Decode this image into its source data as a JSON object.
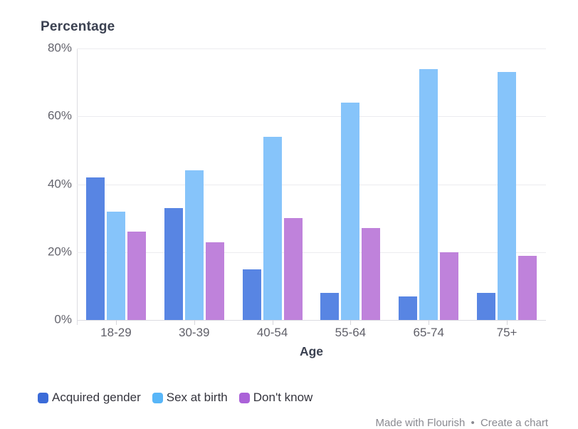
{
  "chart_data": {
    "type": "bar",
    "title": "Percentage",
    "xlabel": "Age",
    "categories": [
      "18-29",
      "30-39",
      "40-54",
      "55-64",
      "65-74",
      "75+"
    ],
    "series": [
      {
        "name": "Acquired gender",
        "color": "#3b6bd8",
        "bar_color": "#5885e3",
        "values": [
          42,
          33,
          15,
          8,
          7,
          8
        ]
      },
      {
        "name": "Sex at birth",
        "color": "#58b6f8",
        "bar_color": "#86c4fa",
        "values": [
          32,
          44,
          54,
          64,
          74,
          73
        ]
      },
      {
        "name": "Don't know",
        "color": "#ab62d8",
        "bar_color": "#bf82db",
        "values": [
          26,
          23,
          30,
          27,
          20,
          19
        ]
      }
    ],
    "ylim": [
      0,
      80
    ],
    "ytick_step": 20,
    "yticks": [
      "80%",
      "60%",
      "40%",
      "20%",
      "0%"
    ],
    "grid": true,
    "legend_position": "bottom-left"
  },
  "footer": {
    "made_with": "Made with Flourish",
    "separator": "•",
    "create_link": "Create a chart"
  }
}
